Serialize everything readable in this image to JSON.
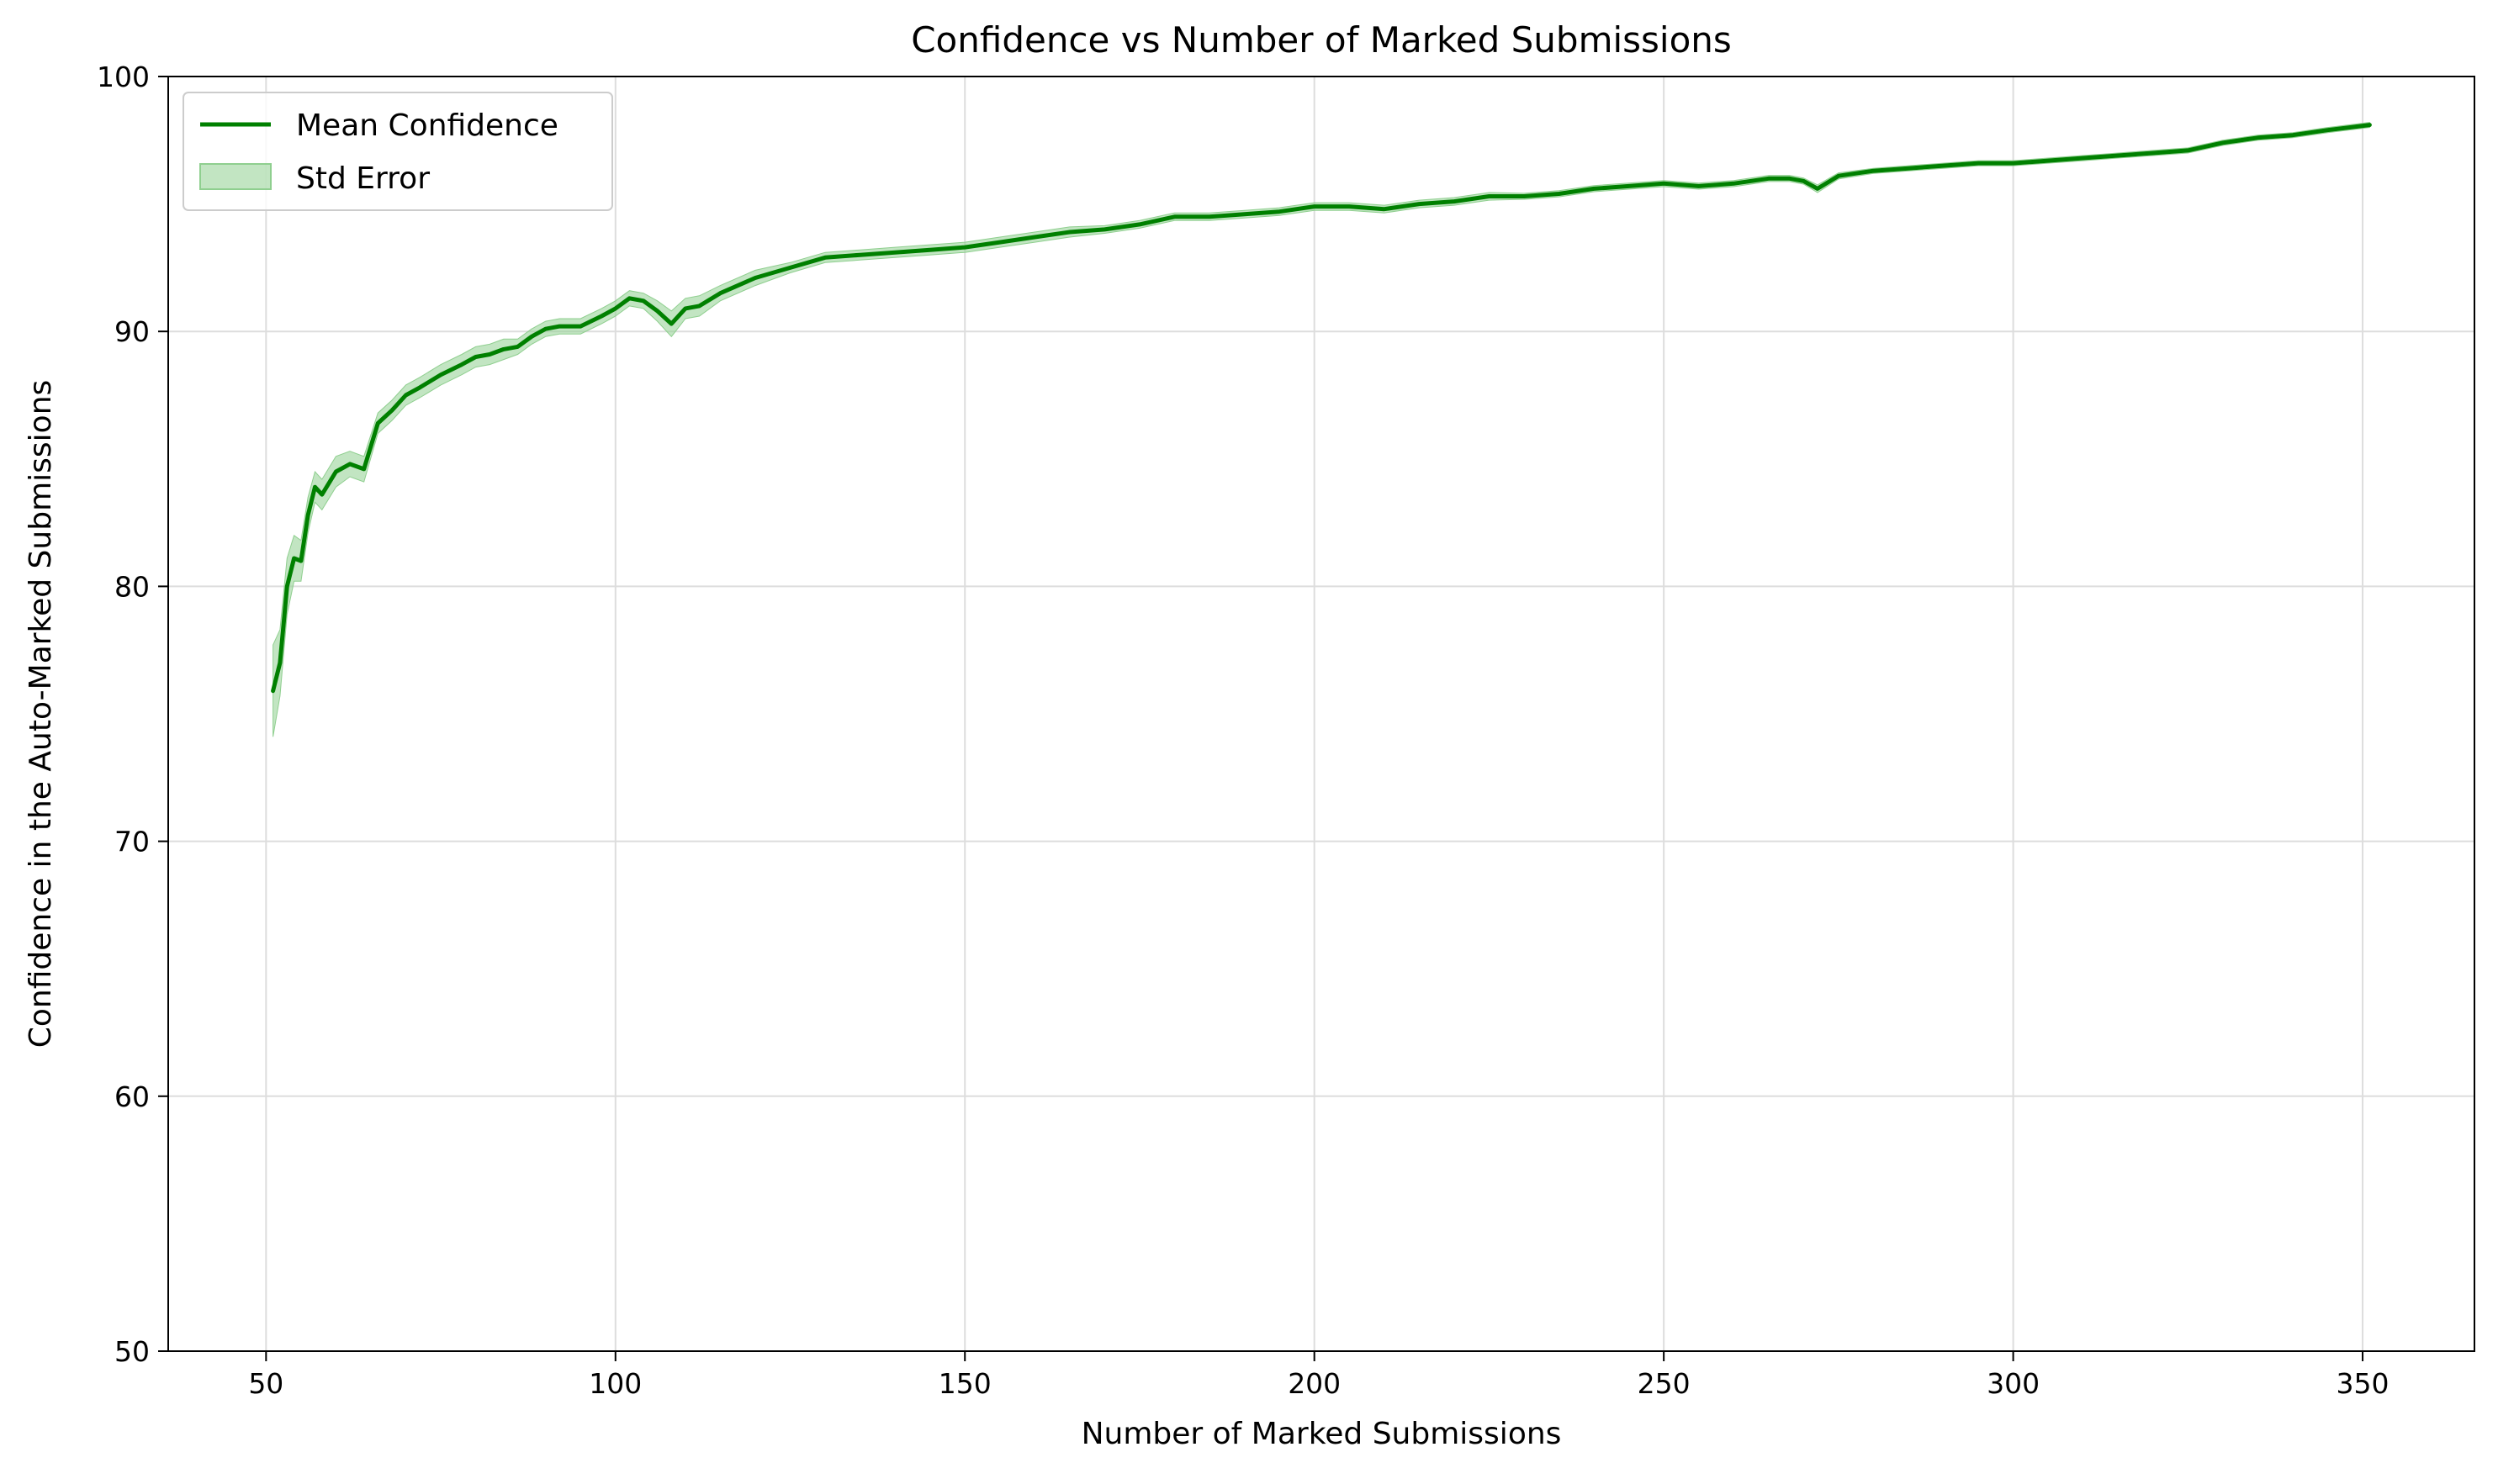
{
  "chart_data": {
    "type": "line",
    "title": "Confidence vs Number of Marked Submissions",
    "xlabel": "Number of Marked Submissions",
    "ylabel": "Confidence in the Auto-Marked Submissions",
    "xlim": [
      36,
      366
    ],
    "ylim": [
      50,
      100
    ],
    "xticks": [
      50,
      100,
      150,
      200,
      250,
      300,
      350
    ],
    "yticks": [
      50,
      60,
      70,
      80,
      90,
      100
    ],
    "grid": true,
    "legend_position": "top-left",
    "legend": [
      "Mean Confidence",
      "Std Error"
    ],
    "colors": {
      "line": "#008000",
      "band": "#8fcf8f"
    },
    "series": [
      {
        "name": "Mean Confidence",
        "x": [
          51,
          52,
          53,
          54,
          55,
          56,
          57,
          58,
          60,
          62,
          64,
          66,
          68,
          70,
          72,
          75,
          78,
          80,
          82,
          84,
          86,
          88,
          90,
          92,
          95,
          98,
          100,
          102,
          104,
          106,
          108,
          110,
          112,
          115,
          120,
          125,
          130,
          135,
          140,
          145,
          150,
          155,
          160,
          165,
          170,
          175,
          180,
          185,
          190,
          195,
          200,
          205,
          210,
          215,
          220,
          225,
          230,
          235,
          240,
          245,
          250,
          255,
          260,
          265,
          268,
          270,
          272,
          275,
          280,
          285,
          290,
          295,
          300,
          305,
          310,
          315,
          320,
          325,
          330,
          335,
          340,
          345,
          351
        ],
        "y": [
          75.9,
          77.0,
          80.0,
          81.1,
          81.0,
          82.8,
          83.9,
          83.6,
          84.5,
          84.8,
          84.6,
          86.4,
          86.9,
          87.5,
          87.8,
          88.3,
          88.7,
          89.0,
          89.1,
          89.3,
          89.4,
          89.8,
          90.1,
          90.2,
          90.2,
          90.6,
          90.9,
          91.3,
          91.2,
          90.8,
          90.3,
          90.9,
          91.0,
          91.5,
          92.1,
          92.5,
          92.9,
          93.0,
          93.1,
          93.2,
          93.3,
          93.5,
          93.7,
          93.9,
          94.0,
          94.2,
          94.5,
          94.5,
          94.6,
          94.7,
          94.9,
          94.9,
          94.8,
          95.0,
          95.1,
          95.3,
          95.3,
          95.4,
          95.6,
          95.7,
          95.8,
          95.7,
          95.8,
          96.0,
          96.0,
          95.9,
          95.6,
          96.1,
          96.3,
          96.4,
          96.5,
          96.6,
          96.6,
          96.7,
          96.8,
          96.9,
          97.0,
          97.1,
          97.4,
          97.6,
          97.7,
          97.9,
          98.1
        ]
      }
    ],
    "std_error": [
      1.8,
      1.3,
      1.1,
      0.9,
      0.8,
      0.7,
      0.6,
      0.6,
      0.6,
      0.5,
      0.5,
      0.4,
      0.4,
      0.4,
      0.4,
      0.4,
      0.4,
      0.4,
      0.4,
      0.4,
      0.3,
      0.3,
      0.3,
      0.3,
      0.3,
      0.3,
      0.3,
      0.3,
      0.3,
      0.4,
      0.5,
      0.4,
      0.4,
      0.3,
      0.3,
      0.2,
      0.2,
      0.2,
      0.2,
      0.2,
      0.2,
      0.2,
      0.2,
      0.2,
      0.15,
      0.15,
      0.15,
      0.15,
      0.15,
      0.15,
      0.15,
      0.15,
      0.15,
      0.15,
      0.15,
      0.15,
      0.12,
      0.12,
      0.12,
      0.12,
      0.12,
      0.12,
      0.12,
      0.12,
      0.12,
      0.12,
      0.15,
      0.12,
      0.1,
      0.1,
      0.1,
      0.1,
      0.1,
      0.1,
      0.1,
      0.1,
      0.1,
      0.1,
      0.1,
      0.1,
      0.1,
      0.1,
      0.1
    ]
  }
}
